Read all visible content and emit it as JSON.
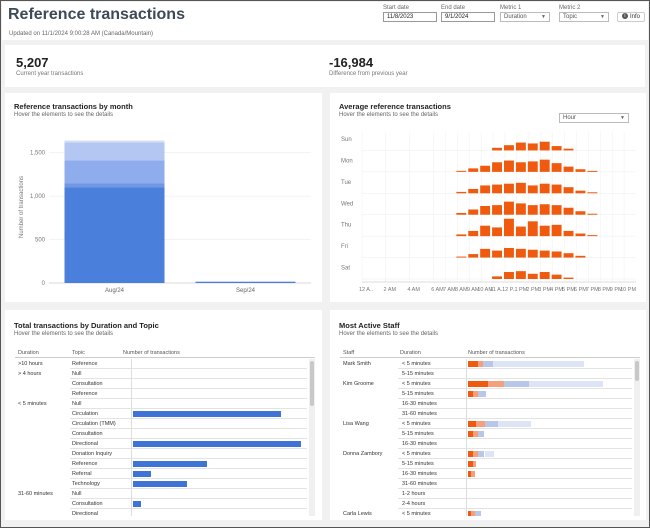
{
  "header": {
    "title": "Reference transactions",
    "updated": "Updated on 11/1/2024 9:00:28 AM (Canada/Mountain)",
    "filters": {
      "start_date_label": "Start date",
      "start_date_value": "11/8/2023",
      "end_date_label": "End date",
      "end_date_value": "9/1/2024",
      "metric1_label": "Metric 1",
      "metric1_value": "Duration",
      "metric2_label": "Metric 2",
      "metric2_value": "Topic"
    },
    "info_label": "Info",
    "icons": {
      "info": "info-icon",
      "dropdown": "chevron-down-icon"
    }
  },
  "kpis": {
    "current": {
      "value": "5,207",
      "label": "Current year transactions"
    },
    "difference": {
      "value": "-16,984",
      "label": "Difference from previous year"
    }
  },
  "by_month": {
    "title": "Reference transactions by month",
    "subtitle": "Hover the elements to see the details",
    "chart_data": {
      "type": "bar",
      "stacked": true,
      "categories": [
        "Aug/24",
        "Sep/24"
      ],
      "series": [
        {
          "color": "#4a7fdc",
          "values": [
            1100,
            15
          ]
        },
        {
          "color": "#6f97e5",
          "values": [
            50,
            0
          ]
        },
        {
          "color": "#8fadec",
          "values": [
            260,
            0
          ]
        },
        {
          "color": "#b3c7f2",
          "values": [
            210,
            0
          ]
        },
        {
          "color": "#d3def7",
          "values": [
            20,
            0
          ]
        }
      ],
      "ylabel": "Number of transactions",
      "yticks": [
        "0",
        "500",
        "1,000",
        "1,500"
      ],
      "ylim": [
        0,
        1750
      ]
    }
  },
  "average": {
    "title": "Average reference transactions",
    "subtitle": "Hover the elements to see the details",
    "dropdown_value": "Hour",
    "chart_data": {
      "type": "heatmap",
      "rows": [
        "Sun",
        "Mon",
        "Tue",
        "Wed",
        "Thu",
        "Fri",
        "Sat"
      ],
      "columns": [
        "12 A..",
        "2 AM",
        "4 AM",
        "6 AM",
        "7 AM",
        "8 AM",
        "9 AM",
        "10 AM",
        "11 A..",
        "12 P..",
        "1 PM",
        "2 PM",
        "3 PM",
        "4 PM",
        "5 PM",
        "6 PM",
        "7 PM",
        "8 PM",
        "9 PM",
        "10 PM"
      ],
      "column_hours": [
        0,
        2,
        4,
        6,
        7,
        8,
        9,
        10,
        11,
        12,
        13,
        14,
        15,
        16,
        17,
        18,
        19,
        20,
        21,
        22
      ],
      "values": [
        [
          0,
          0,
          0,
          0,
          0,
          0,
          0,
          0,
          0.15,
          0.3,
          0.45,
          0.4,
          0.5,
          0.25,
          0.1,
          0,
          0,
          0,
          0,
          0
        ],
        [
          0,
          0,
          0,
          0,
          0,
          0.05,
          0.2,
          0.35,
          0.55,
          0.65,
          0.55,
          0.6,
          0.7,
          0.5,
          0.3,
          0.15,
          0.05,
          0,
          0,
          0
        ],
        [
          0,
          0,
          0,
          0,
          0,
          0.08,
          0.25,
          0.45,
          0.5,
          0.55,
          0.6,
          0.45,
          0.55,
          0.5,
          0.35,
          0.15,
          0.05,
          0,
          0,
          0
        ],
        [
          0,
          0,
          0,
          0,
          0,
          0.1,
          0.3,
          0.5,
          0.55,
          0.75,
          0.65,
          0.55,
          0.6,
          0.55,
          0.4,
          0.2,
          0.05,
          0,
          0,
          0
        ],
        [
          0,
          0,
          0,
          0,
          0,
          0.1,
          0.3,
          0.6,
          0.5,
          1.0,
          0.55,
          0.85,
          0.6,
          0.65,
          0.3,
          0.15,
          0.05,
          0,
          0,
          0
        ],
        [
          0,
          0,
          0,
          0,
          0,
          0.05,
          0.2,
          0.5,
          0.4,
          0.55,
          0.5,
          0.45,
          0.4,
          0.35,
          0.25,
          0.1,
          0,
          0,
          0,
          0
        ],
        [
          0,
          0,
          0,
          0,
          0,
          0,
          0,
          0,
          0.15,
          0.4,
          0.45,
          0.3,
          0.4,
          0.25,
          0.08,
          0,
          0,
          0,
          0,
          0
        ]
      ],
      "color": "#f05a0f"
    }
  },
  "duration_topic": {
    "title": "Total transactions by Duration and Topic",
    "subtitle": "Hover the elements to see the details",
    "columns": [
      "Duration",
      "Topic",
      "Number of transactions"
    ],
    "bar_color": "#3f74d6",
    "rows": [
      {
        "duration": ">10 hours",
        "topic": "Reference",
        "value": 0
      },
      {
        "duration": "> 4 hours",
        "topic": "Null",
        "value": 0
      },
      {
        "duration": "",
        "topic": "Consultation",
        "value": 0
      },
      {
        "duration": "",
        "topic": "Reference",
        "value": 0
      },
      {
        "duration": "< 5 minutes",
        "topic": "Null",
        "value": 0
      },
      {
        "duration": "",
        "topic": "Circulation",
        "value": 0.88
      },
      {
        "duration": "",
        "topic": "Circulation (TMM)",
        "value": 0
      },
      {
        "duration": "",
        "topic": "Consultation",
        "value": 0
      },
      {
        "duration": "",
        "topic": "Directional",
        "value": 1.0
      },
      {
        "duration": "",
        "topic": "Donation Inquiry",
        "value": 0
      },
      {
        "duration": "",
        "topic": "Reference",
        "value": 0.44
      },
      {
        "duration": "",
        "topic": "Referral",
        "value": 0.11
      },
      {
        "duration": "",
        "topic": "Technology",
        "value": 0.32
      },
      {
        "duration": "31-60 minutes",
        "topic": "Null",
        "value": 0
      },
      {
        "duration": "",
        "topic": "Consultation",
        "value": 0.05
      },
      {
        "duration": "",
        "topic": "Directional",
        "value": 0
      }
    ]
  },
  "staff": {
    "title": "Most Active Staff",
    "subtitle": "Hover the elements to see the details",
    "columns": [
      "Staff",
      "Duration",
      "Number of transactions"
    ],
    "rows": [
      {
        "staff": "Mark Smith",
        "duration": "< 5 minutes",
        "segments": [
          0.06,
          0.03,
          0.06,
          0.55
        ]
      },
      {
        "staff": "",
        "duration": "5-15 minutes",
        "segments": [
          0,
          0,
          0,
          0
        ]
      },
      {
        "staff": "Kim Groome",
        "duration": "< 5 minutes",
        "segments": [
          0.12,
          0.1,
          0.15,
          0.45
        ]
      },
      {
        "staff": "",
        "duration": "5-15 minutes",
        "segments": [
          0.03,
          0.03,
          0.05,
          0
        ]
      },
      {
        "staff": "",
        "duration": "16-30 minutes",
        "segments": [
          0,
          0,
          0,
          0
        ]
      },
      {
        "staff": "",
        "duration": "31-60 minutes",
        "segments": [
          0,
          0,
          0,
          0
        ]
      },
      {
        "staff": "Lisa Wang",
        "duration": "< 5 minutes",
        "segments": [
          0.05,
          0.05,
          0.08,
          0.2
        ]
      },
      {
        "staff": "",
        "duration": "5-15 minutes",
        "segments": [
          0.03,
          0.03,
          0.04,
          0
        ]
      },
      {
        "staff": "",
        "duration": "16-30 minutes",
        "segments": [
          0,
          0,
          0,
          0
        ]
      },
      {
        "staff": "Donna Zambory",
        "duration": "< 5 minutes",
        "segments": [
          0.03,
          0.03,
          0.04,
          0.06
        ]
      },
      {
        "staff": "",
        "duration": "5-15 minutes",
        "segments": [
          0.03,
          0.02,
          0,
          0
        ]
      },
      {
        "staff": "",
        "duration": "16-30 minutes",
        "segments": [
          0.02,
          0.02,
          0,
          0
        ]
      },
      {
        "staff": "",
        "duration": "31-60 minutes",
        "segments": [
          0,
          0,
          0,
          0
        ]
      },
      {
        "staff": "",
        "duration": "1-2 hours",
        "segments": [
          0,
          0,
          0,
          0
        ]
      },
      {
        "staff": "",
        "duration": "2-4 hours",
        "segments": [
          0,
          0,
          0,
          0
        ]
      },
      {
        "staff": "Carla Lewis",
        "duration": "< 5 minutes",
        "segments": [
          0.02,
          0.02,
          0.04,
          0
        ]
      }
    ],
    "segment_colors": [
      "#f05a0f",
      "#f5a07a",
      "#b8c6ea",
      "#dde4f5"
    ]
  }
}
